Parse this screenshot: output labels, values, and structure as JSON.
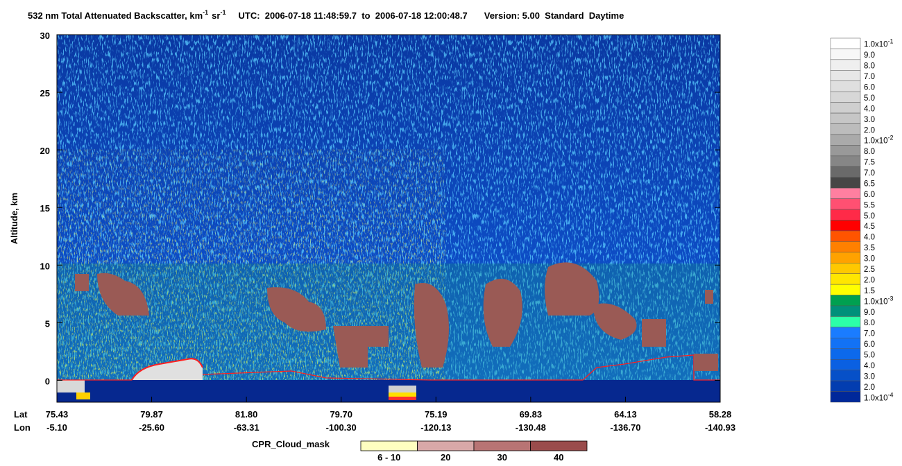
{
  "chart_data": {
    "type": "heatmap",
    "title": {
      "main": "532 nm Total Attenuated Backscatter, km",
      "exp1": "-1",
      "unit2": "sr",
      "exp2": "-1",
      "utc": "UTC:  2006-07-18 11:48:59.7  to  2006-07-18 12:00:48.7",
      "version": "Version: 5.00  Standard  Daytime"
    },
    "ylabel": "Altitude, km",
    "ylim": [
      -1.9,
      30
    ],
    "yticks": [
      0,
      5,
      10,
      15,
      20,
      25,
      30
    ],
    "x_row_labels": [
      "Lat",
      "Lon"
    ],
    "x_ticks": [
      {
        "lat": "75.43",
        "lon": "-5.10"
      },
      {
        "lat": "79.87",
        "lon": "-25.60"
      },
      {
        "lat": "81.80",
        "lon": "-63.31"
      },
      {
        "lat": "79.70",
        "lon": "-100.30"
      },
      {
        "lat": "75.19",
        "lon": "-120.13"
      },
      {
        "lat": "69.83",
        "lon": "-130.48"
      },
      {
        "lat": "64.13",
        "lon": "-136.70"
      },
      {
        "lat": "58.28",
        "lon": "-140.93"
      }
    ],
    "colorbar": {
      "labels": [
        {
          "text": "1.0x10",
          "exp": "-1"
        },
        "9.0",
        "8.0",
        "7.0",
        "6.0",
        "5.0",
        "4.0",
        "3.0",
        "2.0",
        {
          "text": "1.0x10",
          "exp": "-2"
        },
        "8.0",
        "7.5",
        "7.0",
        "6.5",
        "6.0",
        "5.5",
        "5.0",
        "4.5",
        "4.0",
        "3.5",
        "3.0",
        "2.5",
        "2.0",
        "1.5",
        {
          "text": "1.0x10",
          "exp": "-3"
        },
        "9.0",
        "8.0",
        "7.0",
        "6.0",
        "5.0",
        "4.0",
        "3.0",
        "2.0",
        {
          "text": "1.0x10",
          "exp": "-4"
        }
      ],
      "colors": [
        "#ffffff",
        "#f7f7f7",
        "#efefef",
        "#e7e7e7",
        "#dfdfdf",
        "#d7d7d7",
        "#cfcfcf",
        "#c6c6c6",
        "#bcbcbc",
        "#aaaaaa",
        "#999999",
        "#868686",
        "#6a6a6a",
        "#464646",
        "#ff7fa0",
        "#ff5072",
        "#ff2a48",
        "#ff0000",
        "#ff5400",
        "#ff8000",
        "#ffa200",
        "#ffc800",
        "#ffe600",
        "#ffff00",
        "#00a050",
        "#00907a",
        "#2cffa8",
        "#1a7cff",
        "#1272f5",
        "#0c69ec",
        "#0a60e2",
        "#0650c8",
        "#033db0",
        "#00289a"
      ]
    },
    "cloud_mask": {
      "label": "CPR_Cloud_mask",
      "categories": [
        "6 - 10",
        "20",
        "30",
        "40"
      ],
      "colors": [
        "#ffffc0",
        "#d8a8a8",
        "#b87474",
        "#9a4c4c"
      ]
    }
  }
}
